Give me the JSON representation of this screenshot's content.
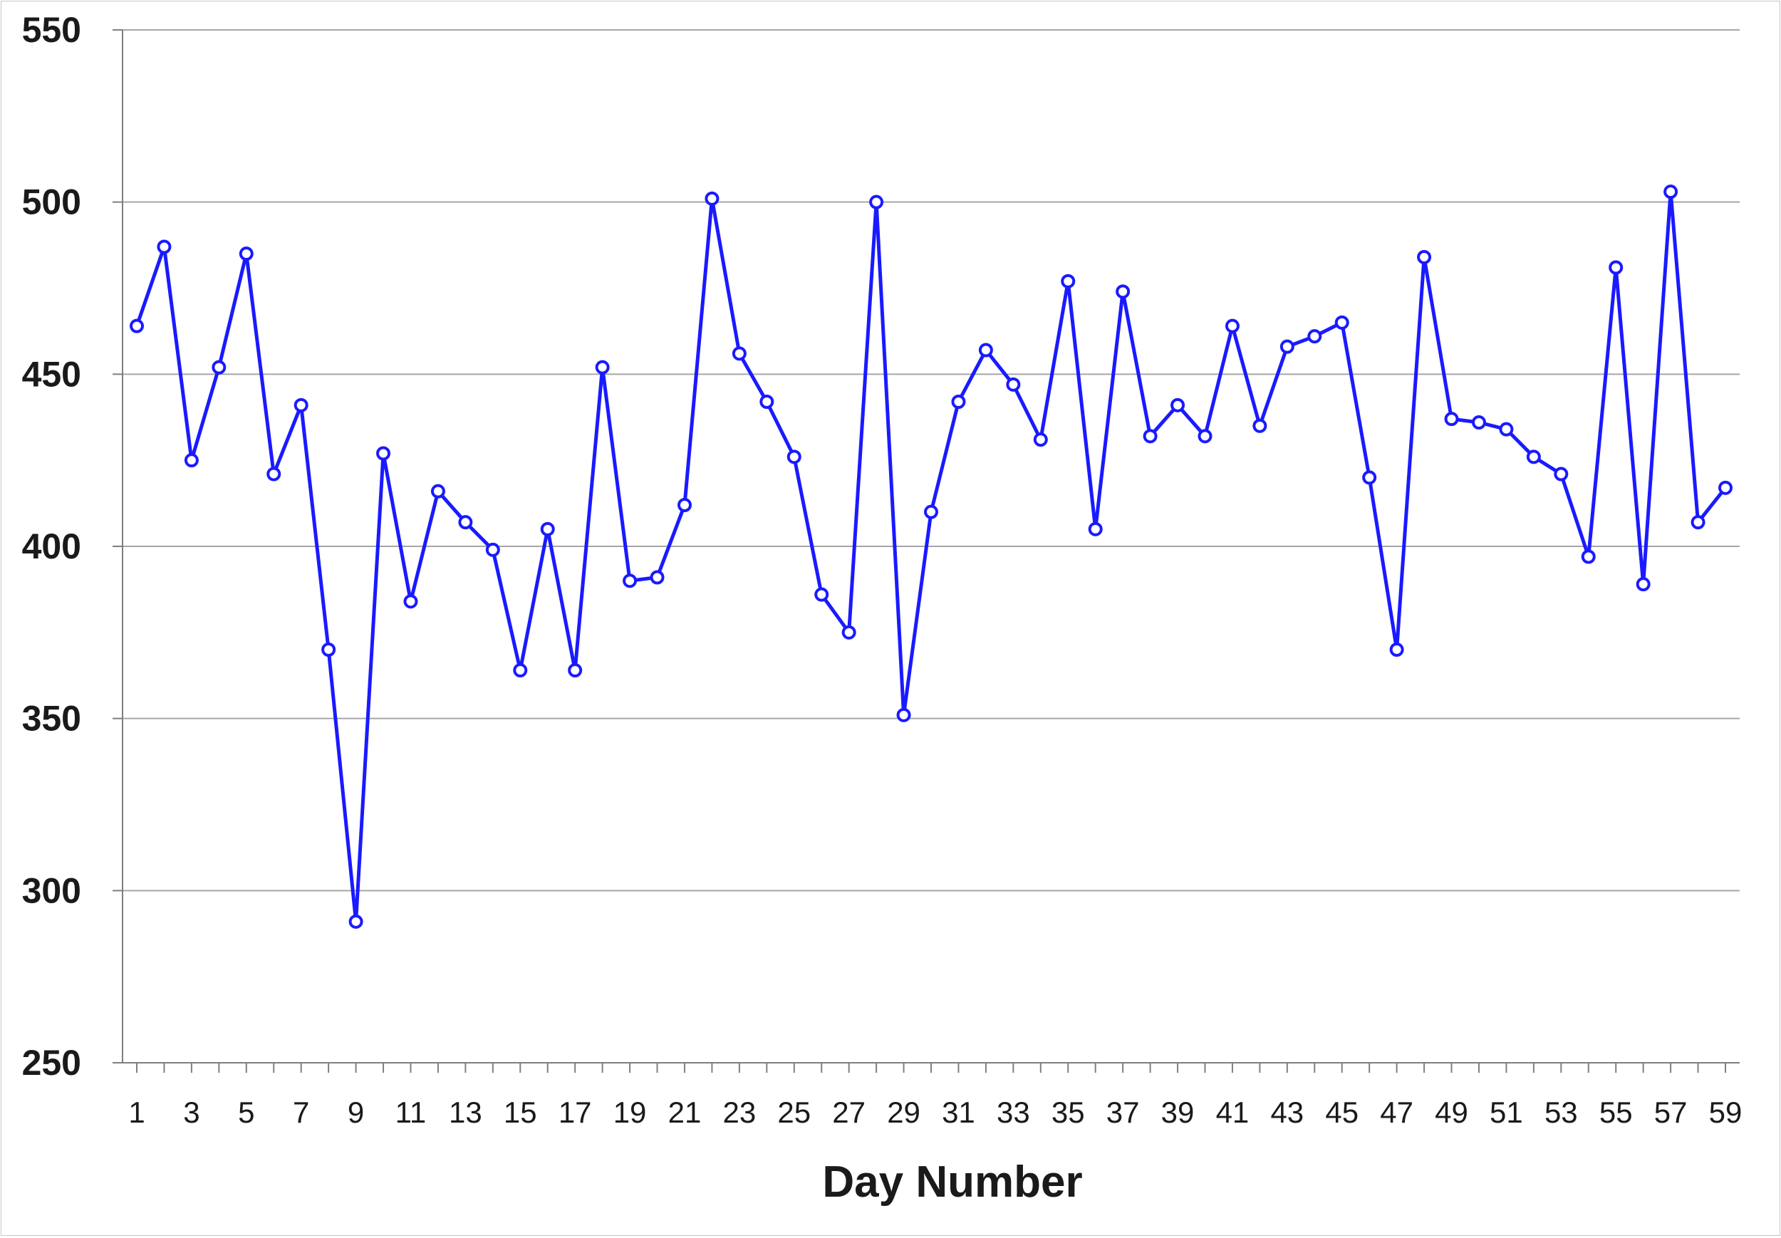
{
  "chart_data": {
    "type": "line",
    "title": "",
    "xlabel": "Day Number",
    "ylabel": "",
    "ylim": [
      250,
      550
    ],
    "yticks": [
      250,
      300,
      350,
      400,
      450,
      500,
      550
    ],
    "xlim": [
      1,
      59
    ],
    "xtick_labels": [
      1,
      3,
      5,
      7,
      9,
      11,
      13,
      15,
      17,
      19,
      21,
      23,
      25,
      27,
      29,
      31,
      33,
      35,
      37,
      39,
      41,
      43,
      45,
      47,
      49,
      51,
      53,
      55,
      57,
      59
    ],
    "grid": "horizontal",
    "legend": "none",
    "colors": {
      "series": "#1a1aff",
      "grid": "#a6a6a6",
      "axis": "#7f7f7f"
    },
    "x": [
      1,
      2,
      3,
      4,
      5,
      6,
      7,
      8,
      9,
      10,
      11,
      12,
      13,
      14,
      15,
      16,
      17,
      18,
      19,
      20,
      21,
      22,
      23,
      24,
      25,
      26,
      27,
      28,
      29,
      30,
      31,
      32,
      33,
      34,
      35,
      36,
      37,
      38,
      39,
      40,
      41,
      42,
      43,
      44,
      45,
      46,
      47,
      48,
      49,
      50,
      51,
      52,
      53,
      54,
      55,
      56,
      57,
      58,
      59
    ],
    "series": [
      {
        "values": [
          464,
          487,
          425,
          452,
          485,
          421,
          441,
          370,
          291,
          427,
          384,
          416,
          407,
          399,
          364,
          405,
          364,
          452,
          390,
          391,
          412,
          501,
          456,
          442,
          426,
          386,
          375,
          500,
          351,
          410,
          442,
          457,
          447,
          431,
          477,
          405,
          474,
          432,
          441,
          432,
          464,
          435,
          458,
          461,
          465,
          420,
          370,
          484,
          437,
          436,
          434,
          426,
          421,
          397,
          481,
          389,
          503,
          407,
          417
        ]
      }
    ]
  }
}
